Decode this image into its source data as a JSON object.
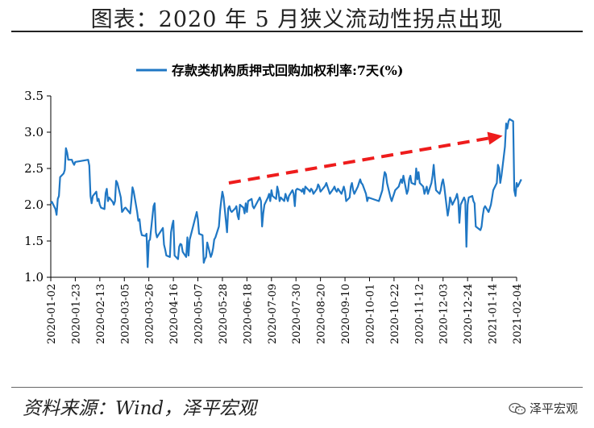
{
  "figure": {
    "title": "图表：2020 年 5 月狭义流动性拐点出现",
    "source": "资料来源：Wind，泽平宏观",
    "watermark": "泽平宏观",
    "watermark_icon": "wechat-icon"
  },
  "chart_data": {
    "type": "line",
    "legend_position": "top-center",
    "grid": false,
    "series": [
      {
        "name": "存款类机构质押式回购加权利率:7天(%)",
        "color": "#1f77c4",
        "points": [
          [
            "2020-01-02",
            2.02
          ],
          [
            "2020-01-03",
            2.04
          ],
          [
            "2020-01-06",
            1.94
          ],
          [
            "2020-01-07",
            1.86
          ],
          [
            "2020-01-08",
            2.08
          ],
          [
            "2020-01-09",
            2.12
          ],
          [
            "2020-01-10",
            2.38
          ],
          [
            "2020-01-13",
            2.43
          ],
          [
            "2020-01-14",
            2.48
          ],
          [
            "2020-01-15",
            2.78
          ],
          [
            "2020-01-16",
            2.72
          ],
          [
            "2020-01-17",
            2.62
          ],
          [
            "2020-01-20",
            2.62
          ],
          [
            "2020-01-21",
            2.58
          ],
          [
            "2020-01-22",
            2.55
          ],
          [
            "2020-01-23",
            2.59
          ],
          [
            "2020-02-03",
            2.62
          ],
          [
            "2020-02-04",
            2.54
          ],
          [
            "2020-02-05",
            2.12
          ],
          [
            "2020-02-06",
            2.02
          ],
          [
            "2020-02-07",
            2.12
          ],
          [
            "2020-02-10",
            2.18
          ],
          [
            "2020-02-11",
            2.05
          ],
          [
            "2020-02-12",
            2.08
          ],
          [
            "2020-02-13",
            2.0
          ],
          [
            "2020-02-14",
            1.96
          ],
          [
            "2020-02-17",
            1.94
          ],
          [
            "2020-02-18",
            2.16
          ],
          [
            "2020-02-19",
            2.22
          ],
          [
            "2020-02-20",
            2.05
          ],
          [
            "2020-02-21",
            2.1
          ],
          [
            "2020-02-24",
            2.04
          ],
          [
            "2020-02-25",
            2.0
          ],
          [
            "2020-02-26",
            2.05
          ],
          [
            "2020-02-27",
            2.33
          ],
          [
            "2020-02-28",
            2.3
          ],
          [
            "2020-03-02",
            2.1
          ],
          [
            "2020-03-03",
            1.9
          ],
          [
            "2020-03-04",
            1.92
          ],
          [
            "2020-03-05",
            1.95
          ],
          [
            "2020-03-06",
            1.96
          ],
          [
            "2020-03-09",
            1.9
          ],
          [
            "2020-03-10",
            1.88
          ],
          [
            "2020-03-11",
            2.05
          ],
          [
            "2020-03-12",
            2.24
          ],
          [
            "2020-03-13",
            2.18
          ],
          [
            "2020-03-16",
            1.9
          ],
          [
            "2020-03-17",
            1.78
          ],
          [
            "2020-03-18",
            1.8
          ],
          [
            "2020-03-19",
            1.65
          ],
          [
            "2020-03-20",
            1.58
          ],
          [
            "2020-03-23",
            1.57
          ],
          [
            "2020-03-24",
            1.6
          ],
          [
            "2020-03-25",
            1.14
          ],
          [
            "2020-03-26",
            1.5
          ],
          [
            "2020-03-27",
            1.52
          ],
          [
            "2020-03-30",
            1.98
          ],
          [
            "2020-03-31",
            2.02
          ],
          [
            "2020-04-01",
            1.62
          ],
          [
            "2020-04-02",
            1.55
          ],
          [
            "2020-04-03",
            1.58
          ],
          [
            "2020-04-07",
            1.68
          ],
          [
            "2020-04-08",
            1.45
          ],
          [
            "2020-04-09",
            1.38
          ],
          [
            "2020-04-10",
            1.3
          ],
          [
            "2020-04-13",
            1.28
          ],
          [
            "2020-04-14",
            1.62
          ],
          [
            "2020-04-15",
            1.72
          ],
          [
            "2020-04-16",
            1.78
          ],
          [
            "2020-04-17",
            1.3
          ],
          [
            "2020-04-20",
            1.25
          ],
          [
            "2020-04-21",
            1.42
          ],
          [
            "2020-04-22",
            1.46
          ],
          [
            "2020-04-23",
            1.45
          ],
          [
            "2020-04-24",
            1.35
          ],
          [
            "2020-04-27",
            1.28
          ],
          [
            "2020-04-28",
            1.55
          ],
          [
            "2020-04-29",
            1.3
          ],
          [
            "2020-04-30",
            1.52
          ],
          [
            "2020-05-06",
            1.9
          ],
          [
            "2020-05-07",
            1.8
          ],
          [
            "2020-05-08",
            1.6
          ],
          [
            "2020-05-11",
            1.58
          ],
          [
            "2020-05-12",
            1.2
          ],
          [
            "2020-05-13",
            1.25
          ],
          [
            "2020-05-14",
            1.28
          ],
          [
            "2020-05-15",
            1.48
          ],
          [
            "2020-05-18",
            1.28
          ],
          [
            "2020-05-19",
            1.32
          ],
          [
            "2020-05-20",
            1.4
          ],
          [
            "2020-05-21",
            1.52
          ],
          [
            "2020-05-22",
            1.55
          ],
          [
            "2020-05-25",
            1.7
          ],
          [
            "2020-05-26",
            1.92
          ],
          [
            "2020-05-27",
            2.06
          ],
          [
            "2020-05-28",
            2.18
          ],
          [
            "2020-05-29",
            2.1
          ],
          [
            "2020-06-01",
            1.62
          ],
          [
            "2020-06-02",
            1.95
          ],
          [
            "2020-06-03",
            1.98
          ],
          [
            "2020-06-04",
            1.92
          ],
          [
            "2020-06-05",
            1.9
          ],
          [
            "2020-06-08",
            1.95
          ],
          [
            "2020-06-09",
            1.98
          ],
          [
            "2020-06-10",
            1.85
          ],
          [
            "2020-06-11",
            1.8
          ],
          [
            "2020-06-12",
            2.0
          ],
          [
            "2020-06-15",
            1.96
          ],
          [
            "2020-06-16",
            1.88
          ],
          [
            "2020-06-17",
            2.02
          ],
          [
            "2020-06-18",
            1.9
          ],
          [
            "2020-06-19",
            2.05
          ],
          [
            "2020-06-22",
            2.08
          ],
          [
            "2020-06-23",
            1.98
          ],
          [
            "2020-06-24",
            1.95
          ],
          [
            "2020-06-29",
            2.1
          ],
          [
            "2020-06-30",
            2.05
          ],
          [
            "2020-07-01",
            1.7
          ],
          [
            "2020-07-02",
            1.88
          ],
          [
            "2020-07-03",
            2.0
          ],
          [
            "2020-07-06",
            2.1
          ],
          [
            "2020-07-07",
            2.15
          ],
          [
            "2020-07-08",
            2.05
          ],
          [
            "2020-07-09",
            2.2
          ],
          [
            "2020-07-10",
            2.12
          ],
          [
            "2020-07-13",
            2.08
          ],
          [
            "2020-07-14",
            2.25
          ],
          [
            "2020-07-15",
            2.18
          ],
          [
            "2020-07-16",
            2.05
          ],
          [
            "2020-07-17",
            2.1
          ],
          [
            "2020-07-20",
            2.05
          ],
          [
            "2020-07-21",
            2.15
          ],
          [
            "2020-07-22",
            2.1
          ],
          [
            "2020-07-23",
            2.05
          ],
          [
            "2020-07-24",
            2.12
          ],
          [
            "2020-07-27",
            2.2
          ],
          [
            "2020-07-28",
            2.15
          ],
          [
            "2020-07-29",
            1.98
          ],
          [
            "2020-07-30",
            2.2
          ],
          [
            "2020-07-31",
            2.22
          ],
          [
            "2020-08-03",
            2.2
          ],
          [
            "2020-08-04",
            2.18
          ],
          [
            "2020-08-05",
            2.22
          ],
          [
            "2020-08-06",
            2.15
          ],
          [
            "2020-08-07",
            2.25
          ],
          [
            "2020-08-10",
            2.2
          ],
          [
            "2020-08-11",
            2.18
          ],
          [
            "2020-08-12",
            2.22
          ],
          [
            "2020-08-13",
            2.2
          ],
          [
            "2020-08-14",
            2.15
          ],
          [
            "2020-08-17",
            2.22
          ],
          [
            "2020-08-18",
            2.28
          ],
          [
            "2020-08-19",
            2.25
          ],
          [
            "2020-08-20",
            2.18
          ],
          [
            "2020-08-21",
            2.2
          ],
          [
            "2020-08-24",
            2.26
          ],
          [
            "2020-08-25",
            2.3
          ],
          [
            "2020-08-26",
            2.25
          ],
          [
            "2020-08-27",
            2.2
          ],
          [
            "2020-08-28",
            2.15
          ],
          [
            "2020-08-31",
            2.22
          ],
          [
            "2020-09-01",
            2.25
          ],
          [
            "2020-09-02",
            2.2
          ],
          [
            "2020-09-03",
            2.18
          ],
          [
            "2020-09-04",
            2.22
          ],
          [
            "2020-09-07",
            2.15
          ],
          [
            "2020-09-08",
            2.2
          ],
          [
            "2020-09-09",
            2.25
          ],
          [
            "2020-09-10",
            2.18
          ],
          [
            "2020-09-11",
            2.05
          ],
          [
            "2020-09-14",
            2.1
          ],
          [
            "2020-09-15",
            2.25
          ],
          [
            "2020-09-16",
            2.3
          ],
          [
            "2020-09-17",
            2.2
          ],
          [
            "2020-09-18",
            2.15
          ],
          [
            "2020-09-21",
            2.25
          ],
          [
            "2020-09-22",
            2.3
          ],
          [
            "2020-09-23",
            2.35
          ],
          [
            "2020-09-24",
            2.3
          ],
          [
            "2020-09-25",
            2.28
          ],
          [
            "2020-09-28",
            2.15
          ],
          [
            "2020-09-29",
            2.05
          ],
          [
            "2020-09-30",
            2.1
          ],
          [
            "2020-10-09",
            2.05
          ],
          [
            "2020-10-12",
            2.2
          ],
          [
            "2020-10-13",
            2.35
          ],
          [
            "2020-10-14",
            2.45
          ],
          [
            "2020-10-15",
            2.42
          ],
          [
            "2020-10-16",
            2.3
          ],
          [
            "2020-10-19",
            2.1
          ],
          [
            "2020-10-20",
            2.05
          ],
          [
            "2020-10-21",
            2.1
          ],
          [
            "2020-10-22",
            2.15
          ],
          [
            "2020-10-23",
            2.2
          ],
          [
            "2020-10-26",
            2.25
          ],
          [
            "2020-10-27",
            2.3
          ],
          [
            "2020-10-28",
            2.35
          ],
          [
            "2020-10-29",
            2.3
          ],
          [
            "2020-10-30",
            2.4
          ],
          [
            "2020-11-02",
            2.15
          ],
          [
            "2020-11-03",
            2.2
          ],
          [
            "2020-11-04",
            2.35
          ],
          [
            "2020-11-05",
            2.4
          ],
          [
            "2020-11-06",
            2.3
          ],
          [
            "2020-11-09",
            2.28
          ],
          [
            "2020-11-10",
            2.5
          ],
          [
            "2020-11-11",
            2.35
          ],
          [
            "2020-11-12",
            2.45
          ],
          [
            "2020-11-13",
            2.3
          ],
          [
            "2020-11-16",
            2.25
          ],
          [
            "2020-11-17",
            2.15
          ],
          [
            "2020-11-18",
            2.2
          ],
          [
            "2020-11-19",
            2.25
          ],
          [
            "2020-11-20",
            2.15
          ],
          [
            "2020-11-23",
            2.3
          ],
          [
            "2020-11-24",
            2.4
          ],
          [
            "2020-11-25",
            2.55
          ],
          [
            "2020-11-26",
            2.35
          ],
          [
            "2020-11-27",
            2.2
          ],
          [
            "2020-11-30",
            2.15
          ],
          [
            "2020-12-01",
            2.2
          ],
          [
            "2020-12-02",
            2.3
          ],
          [
            "2020-12-03",
            2.35
          ],
          [
            "2020-12-04",
            2.25
          ],
          [
            "2020-12-07",
            1.85
          ],
          [
            "2020-12-08",
            1.95
          ],
          [
            "2020-12-09",
            2.1
          ],
          [
            "2020-12-10",
            2.05
          ],
          [
            "2020-12-11",
            2.0
          ],
          [
            "2020-12-14",
            2.1
          ],
          [
            "2020-12-15",
            2.15
          ],
          [
            "2020-12-16",
            2.05
          ],
          [
            "2020-12-17",
            1.75
          ],
          [
            "2020-12-18",
            2.0
          ],
          [
            "2020-12-21",
            2.1
          ],
          [
            "2020-12-22",
            2.05
          ],
          [
            "2020-12-23",
            1.42
          ],
          [
            "2020-12-24",
            2.0
          ],
          [
            "2020-12-25",
            2.1
          ],
          [
            "2020-12-28",
            2.12
          ],
          [
            "2020-12-29",
            2.05
          ],
          [
            "2020-12-30",
            2.02
          ],
          [
            "2020-12-31",
            1.7
          ],
          [
            "2021-01-04",
            1.65
          ],
          [
            "2021-01-05",
            1.7
          ],
          [
            "2021-01-06",
            1.85
          ],
          [
            "2021-01-07",
            1.95
          ],
          [
            "2021-01-08",
            1.98
          ],
          [
            "2021-01-11",
            1.9
          ],
          [
            "2021-01-12",
            1.95
          ],
          [
            "2021-01-13",
            2.0
          ],
          [
            "2021-01-14",
            2.1
          ],
          [
            "2021-01-15",
            2.2
          ],
          [
            "2021-01-18",
            2.3
          ],
          [
            "2021-01-19",
            2.55
          ],
          [
            "2021-01-20",
            2.5
          ],
          [
            "2021-01-21",
            2.3
          ],
          [
            "2021-01-22",
            2.4
          ],
          [
            "2021-01-25",
            2.8
          ],
          [
            "2021-01-26",
            3.12
          ],
          [
            "2021-01-27",
            3.05
          ],
          [
            "2021-01-28",
            3.15
          ],
          [
            "2021-01-29",
            3.18
          ],
          [
            "2021-02-01",
            3.15
          ],
          [
            "2021-02-02",
            2.2
          ],
          [
            "2021-02-03",
            2.12
          ],
          [
            "2021-02-04",
            2.3
          ],
          [
            "2021-02-05",
            2.25
          ],
          [
            "2021-02-08",
            2.35
          ]
        ]
      }
    ],
    "x_ticks": [
      "2020-01-02",
      "2020-01-23",
      "2020-02-13",
      "2020-03-05",
      "2020-03-26",
      "2020-04-16",
      "2020-05-07",
      "2020-05-28",
      "2020-06-18",
      "2020-07-09",
      "2020-07-30",
      "2020-08-20",
      "2020-09-10",
      "2020-10-01",
      "2020-10-22",
      "2020-11-12",
      "2020-12-03",
      "2020-12-24",
      "2021-01-14",
      "2021-02-04"
    ],
    "y_ticks": [
      "1.0",
      "1.5",
      "2.0",
      "2.5",
      "3.0",
      "3.5"
    ],
    "ylim": [
      1.0,
      3.5
    ],
    "xlabel": "",
    "ylabel": "",
    "annotation": {
      "type": "dashed-arrow",
      "color": "#ee1c1c",
      "from": [
        "2020-05-28",
        2.3
      ],
      "to": [
        "2021-01-23",
        2.95
      ]
    }
  }
}
